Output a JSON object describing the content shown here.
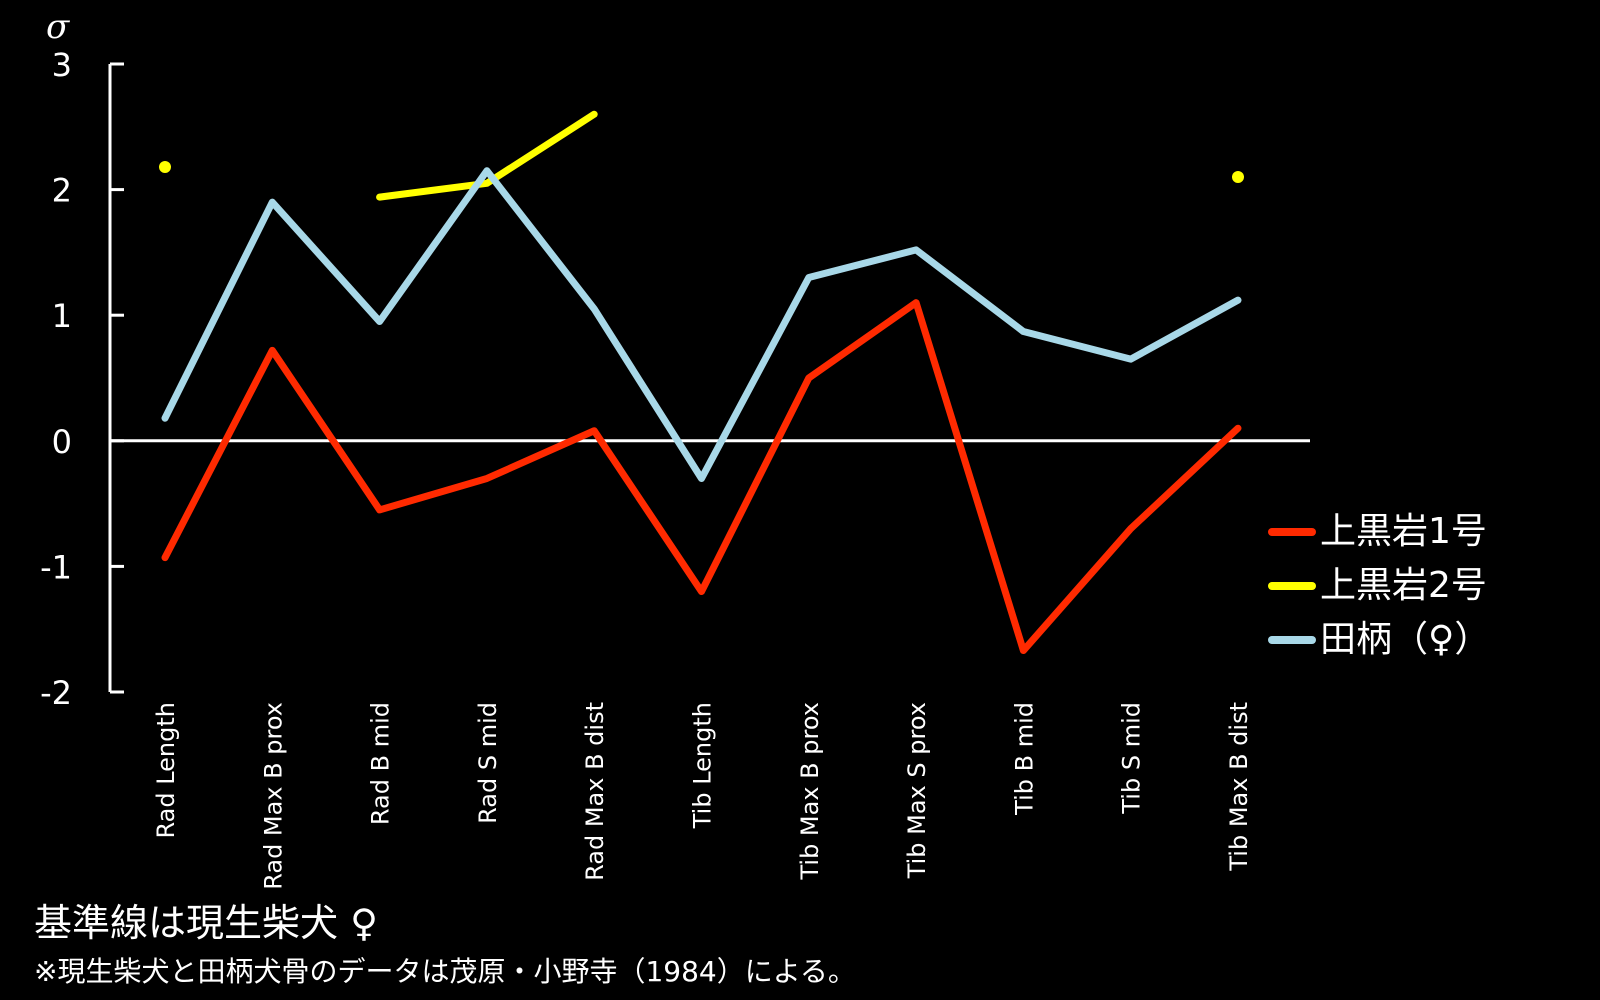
{
  "chart_data": {
    "type": "line",
    "y_unit_label": "σ",
    "ylim": [
      -2,
      3
    ],
    "yticks": [
      "3",
      "2",
      "1",
      "0",
      "-1",
      "-2"
    ],
    "categories": [
      "Rad Length",
      "Rad Max B prox",
      "Rad B mid",
      "Rad S mid",
      "Rad Max B dist",
      "Tib Length",
      "Tib Max B prox",
      "Tib Max S prox",
      "Tib B mid",
      "Tib S mid",
      "Tib Max B dist"
    ],
    "baseline": 0,
    "series": [
      {
        "name": "上黒岩1号",
        "color": "#ff2a00",
        "values": [
          -0.93,
          0.72,
          -0.55,
          -0.3,
          0.08,
          -1.2,
          0.5,
          1.1,
          -1.67,
          -0.7,
          0.1
        ]
      },
      {
        "name": "上黒岩2号",
        "color": "#ffff00",
        "values": [
          2.18,
          null,
          1.94,
          2.05,
          2.6,
          null,
          null,
          null,
          null,
          null,
          2.1
        ]
      },
      {
        "name": "田柄（♀）",
        "color": "#a8d8e8",
        "values": [
          0.18,
          1.9,
          0.95,
          2.15,
          1.05,
          -0.3,
          1.3,
          1.52,
          0.87,
          0.65,
          1.12
        ]
      }
    ],
    "legend_position": "right"
  },
  "notes": {
    "baseline_note": "基準線は現生柴犬 ♀",
    "source_note": "※現生柴犬と田柄犬骨のデータは茂原・小野寺（1984）による。"
  }
}
